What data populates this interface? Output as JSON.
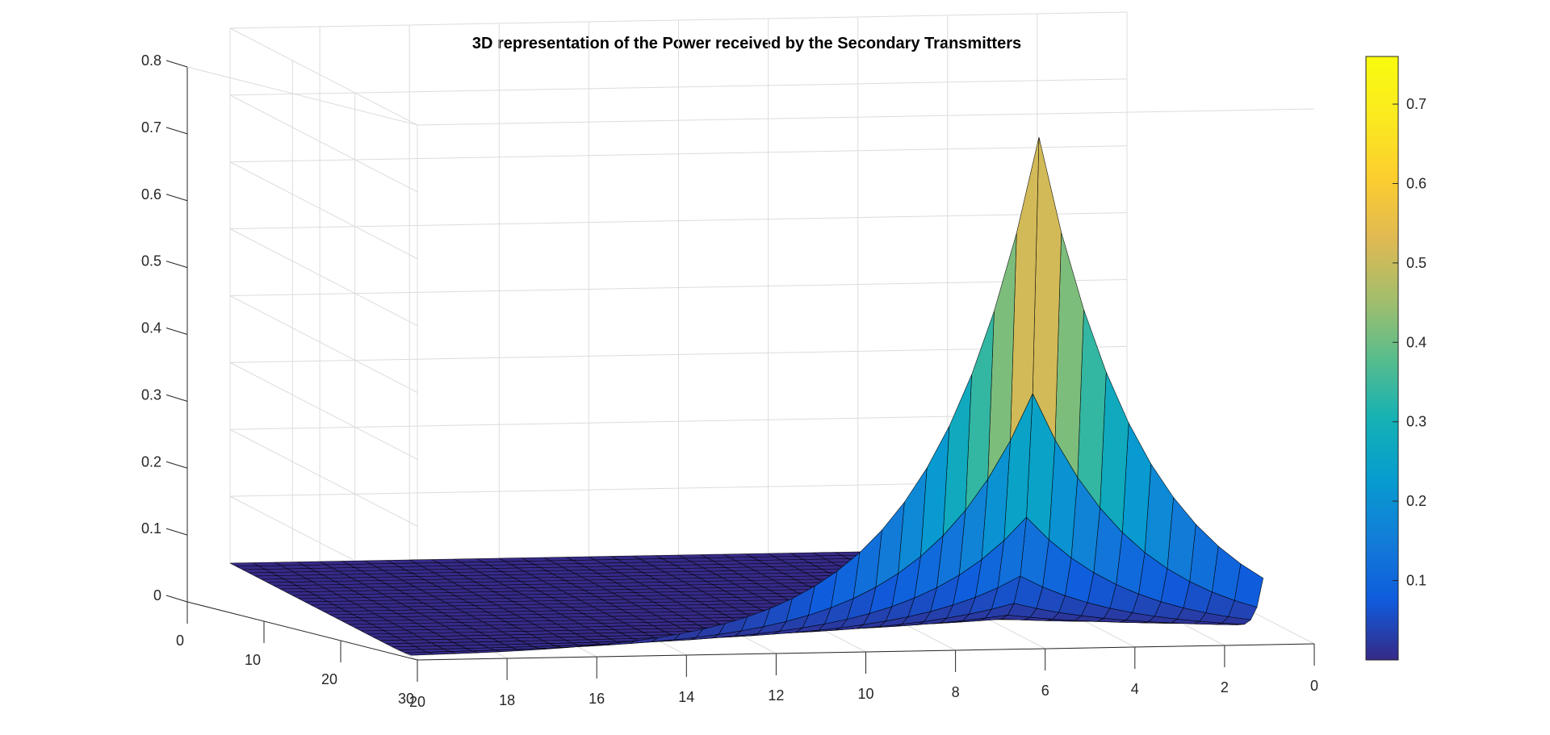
{
  "chart_data": {
    "type": "surface",
    "title": "3D representation of the Power received by the Secondary Transmitters",
    "xlabel": "",
    "ylabel": "",
    "zlabel": "",
    "x_axis": {
      "range": [
        0,
        20
      ],
      "ticks": [
        0,
        2,
        4,
        6,
        8,
        10,
        12,
        14,
        16,
        18,
        20
      ],
      "reversed": true
    },
    "y_axis": {
      "range": [
        0,
        30
      ],
      "ticks": [
        0,
        10,
        20,
        30
      ]
    },
    "z_axis": {
      "range": [
        0,
        0.8
      ],
      "ticks": [
        0,
        0.1,
        0.2,
        0.3,
        0.4,
        0.5,
        0.6,
        0.7,
        0.8
      ]
    },
    "surface": {
      "x_grid": [
        1,
        1.5,
        2,
        2.5,
        3,
        3.5,
        4,
        4.5,
        5,
        5.5,
        6,
        6.5,
        7,
        7.5,
        8,
        8.5,
        9,
        9.5,
        10,
        10.5,
        11,
        11.5,
        12,
        12.5,
        13,
        13.5,
        14,
        14.5,
        15,
        15.5,
        16,
        16.5,
        17,
        17.5,
        18,
        18.5,
        19,
        19.5,
        20
      ],
      "y_grid": [
        1,
        2,
        3,
        4,
        5,
        6,
        7,
        8,
        9,
        10,
        11,
        12,
        13,
        14,
        15,
        16,
        17,
        18,
        19,
        20,
        21,
        22,
        23,
        24,
        25,
        26,
        27,
        28,
        29,
        30
      ],
      "peak": {
        "x": 6,
        "y": 1,
        "z": 0.76
      },
      "description_values": {
        "z_at_x6_y1": 0.76,
        "z_at_x20_y1": 0.0
      }
    },
    "colorbar": {
      "colormap": "parula",
      "range": [
        0.0,
        0.76
      ],
      "ticks": [
        0.1,
        0.2,
        0.3,
        0.4,
        0.5,
        0.6,
        0.7
      ]
    },
    "grid": true,
    "colors": {
      "axis": "#262626",
      "grid": "#dcdcdc",
      "edge": "#000000"
    }
  }
}
